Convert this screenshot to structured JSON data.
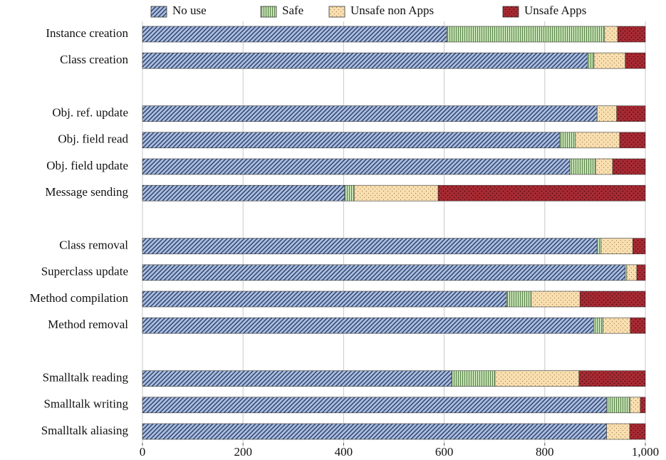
{
  "chart_data": {
    "type": "stacked-barh",
    "categories": [
      "Instance creation",
      "Class creation",
      null,
      "Obj. ref. update",
      "Obj. field read",
      "Obj. field update",
      "Message sending",
      null,
      "Class removal",
      "Superclass update",
      "Method compilation",
      "Method removal",
      null,
      "Smalltalk reading",
      "Smalltalk writing",
      "Smalltalk aliasing"
    ],
    "series": [
      {
        "name": "No use",
        "color": "#a9bde0",
        "values": [
          605,
          885,
          null,
          904,
          830,
          850,
          402,
          null,
          904,
          960,
          724,
          897,
          null,
          615,
          923,
          923
        ]
      },
      {
        "name": "Safe",
        "color": "#c6e2b5",
        "values": [
          314,
          13,
          null,
          0,
          31,
          51,
          19,
          null,
          8,
          3,
          49,
          19,
          null,
          86,
          47,
          0
        ]
      },
      {
        "name": "Unsafe non Apps",
        "color": "#f9dfb0",
        "values": [
          26,
          62,
          null,
          39,
          88,
          34,
          167,
          null,
          63,
          20,
          97,
          54,
          null,
          167,
          20,
          46
        ]
      },
      {
        "name": "Unsafe Apps",
        "color": "#a82a33",
        "values": [
          55,
          40,
          null,
          57,
          51,
          65,
          412,
          null,
          25,
          17,
          130,
          30,
          null,
          132,
          10,
          31
        ]
      }
    ],
    "xlim": [
      0,
      1000
    ],
    "xticks": [
      0,
      200,
      400,
      600,
      800,
      {
        "value": 1000,
        "label": "1,000"
      }
    ],
    "grid": true
  }
}
